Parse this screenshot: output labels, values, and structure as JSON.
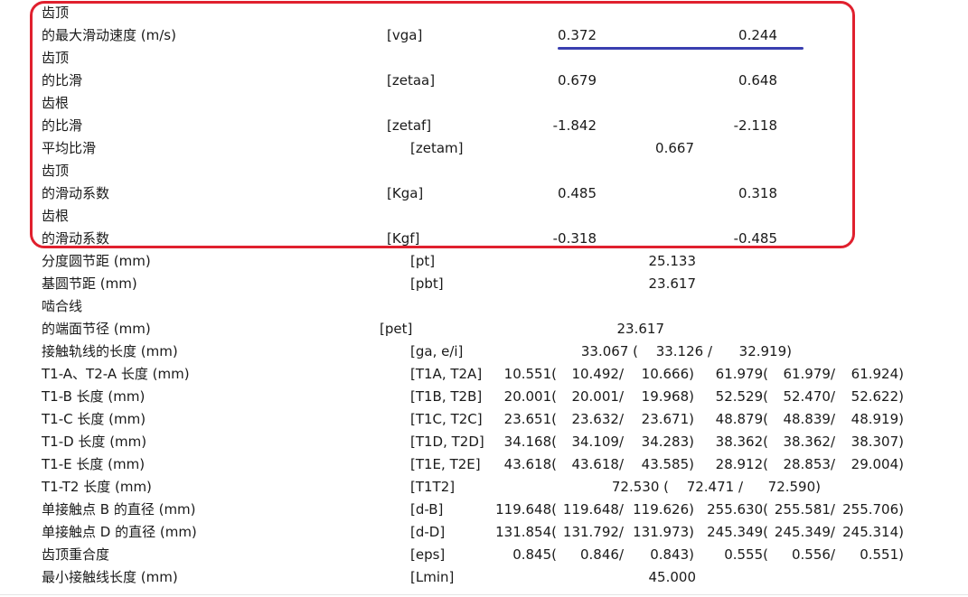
{
  "highlight": {
    "box_color": "#e0202e",
    "line_color": "#3a3fb0"
  },
  "rows": {
    "r1": {
      "label": "齿顶"
    },
    "r2": {
      "label": "的最大滑动速度 (m/s)",
      "key": "[vga]",
      "v1": "0.372",
      "v2": "0.244"
    },
    "r3": {
      "label": "齿顶"
    },
    "r4": {
      "label": "的比滑",
      "key": "[zetaa]",
      "v1": "0.679",
      "v2": "0.648"
    },
    "r5": {
      "label": "齿根"
    },
    "r6": {
      "label": "的比滑",
      "key": "[zetaf]",
      "v1": "-1.842",
      "v2": "-2.118"
    },
    "r7": {
      "label": "平均比滑",
      "key": "[zetam]",
      "v": "0.667"
    },
    "r8": {
      "label": "齿顶"
    },
    "r9": {
      "label": "的滑动系数",
      "key": "[Kga]",
      "v1": "0.485",
      "v2": "0.318"
    },
    "r10": {
      "label": "齿根"
    },
    "r11": {
      "label": "的滑动系数",
      "key": "[Kgf]",
      "v1": "-0.318",
      "v2": "-0.485"
    },
    "r12": {
      "label": "分度圆节距 (mm)",
      "key": "[pt]",
      "v": "25.133"
    },
    "r13": {
      "label": "基圆节距 (mm)",
      "key": "[pbt]",
      "v": "23.617"
    },
    "r14": {
      "label": "啮合线"
    },
    "r15": {
      "label": "的端面节径 (mm)",
      "key": "[pet]",
      "v": "23.617"
    },
    "r16": {
      "label": "接触轨线的长度 (mm)",
      "key": "[ga, e/i]",
      "a": "33.067 (",
      "b": "33.126 /",
      "c": "32.919)"
    },
    "r17": {
      "label": "T1-A、T2-A 长度 (mm)",
      "key": "[T1A, T2A]",
      "a": "10.551(",
      "b": "10.492/",
      "c": "10.666)",
      "d": "61.979(",
      "e": "61.979/",
      "f": "61.924)"
    },
    "r18": {
      "label": "T1-B 长度 (mm)",
      "key": "[T1B, T2B]",
      "a": "20.001(",
      "b": "20.001/",
      "c": "19.968)",
      "d": "52.529(",
      "e": "52.470/",
      "f": "52.622)"
    },
    "r19": {
      "label": "T1-C 长度 (mm)",
      "key": "[T1C, T2C]",
      "a": "23.651(",
      "b": "23.632/",
      "c": "23.671)",
      "d": "48.879(",
      "e": "48.839/",
      "f": "48.919)"
    },
    "r20": {
      "label": "T1-D 长度 (mm)",
      "key": "[T1D, T2D]",
      "a": "34.168(",
      "b": "34.109/",
      "c": "34.283)",
      "d": "38.362(",
      "e": "38.362/",
      "f": "38.307)"
    },
    "r21": {
      "label": "T1-E 长度 (mm)",
      "key": "[T1E, T2E]",
      "a": "43.618(",
      "b": "43.618/",
      "c": "43.585)",
      "d": "28.912(",
      "e": "28.853/",
      "f": "29.004)"
    },
    "r22": {
      "label": "T1-T2 长度 (mm)",
      "key": "[T1T2]",
      "a": "72.530 (",
      "b": "72.471 /",
      "c": "72.590)"
    },
    "r23": {
      "label": "单接触点 B 的直径 (mm)",
      "key": "[d-B]",
      "a": "119.648(",
      "b": "119.648/",
      "c": "119.626)",
      "d": "255.630(",
      "e": "255.581/",
      "f": "255.706)"
    },
    "r24": {
      "label": "单接触点 D 的直径 (mm)",
      "key": "[d-D]",
      "a": "131.854(",
      "b": "131.792/",
      "c": "131.973)",
      "d": "245.349(",
      "e": "245.349/",
      "f": "245.314)"
    },
    "r25": {
      "label": "齿顶重合度",
      "key": "[eps]",
      "a": "0.845(",
      "b": "0.846/",
      "c": "0.843)",
      "d": "0.555(",
      "e": "0.556/",
      "f": "0.551)"
    },
    "r26": {
      "label": "最小接触线长度 (mm)",
      "key": "[Lmin]",
      "v": "45.000"
    }
  }
}
